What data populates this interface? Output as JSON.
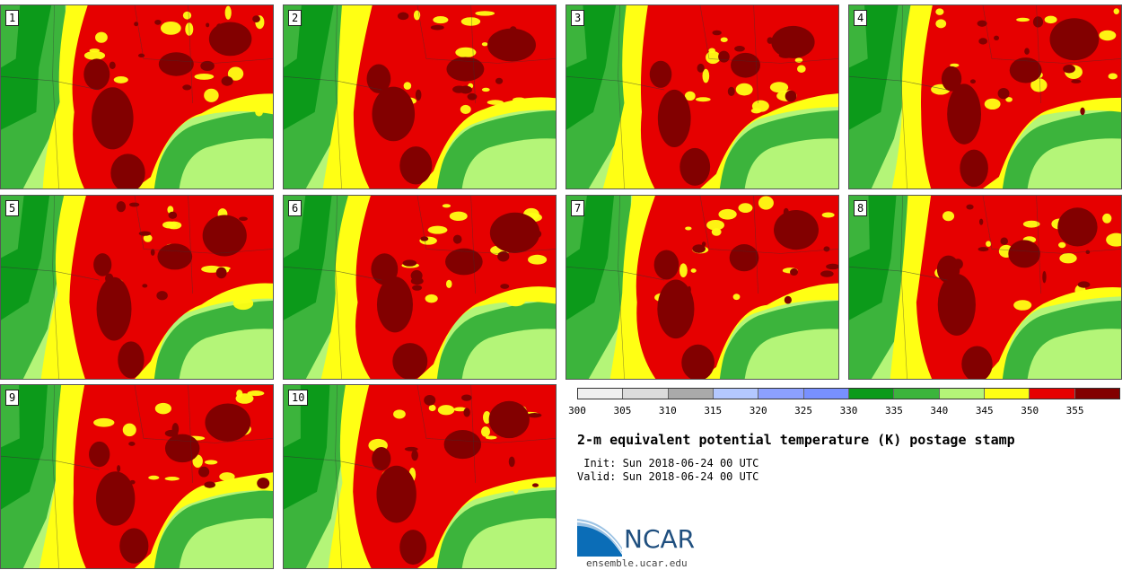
{
  "panels": [
    {
      "label": "1"
    },
    {
      "label": "2"
    },
    {
      "label": "3"
    },
    {
      "label": "4"
    },
    {
      "label": "5"
    },
    {
      "label": "6"
    },
    {
      "label": "7"
    },
    {
      "label": "8"
    },
    {
      "label": "9"
    },
    {
      "label": "10"
    }
  ],
  "colorbar": {
    "colors": [
      "#f0f0f0",
      "#dcdcdc",
      "#aaaaaa",
      "#b4c8ff",
      "#8ca0ff",
      "#7890ff",
      "#0c9a1a",
      "#3cb43c",
      "#b4f578",
      "#ffff14",
      "#e60000",
      "#820000"
    ],
    "ticks": [
      "300",
      "305",
      "310",
      "315",
      "320",
      "325",
      "330",
      "335",
      "340",
      "345",
      "350",
      "355"
    ]
  },
  "title": "2-m equivalent potential temperature (K) postage stamp",
  "init": " Init: Sun 2018-06-24 00 UTC",
  "valid": "Valid: Sun 2018-06-24 00 UTC",
  "logo": {
    "text": "NCAR",
    "url": "ensemble.ucar.edu"
  }
}
